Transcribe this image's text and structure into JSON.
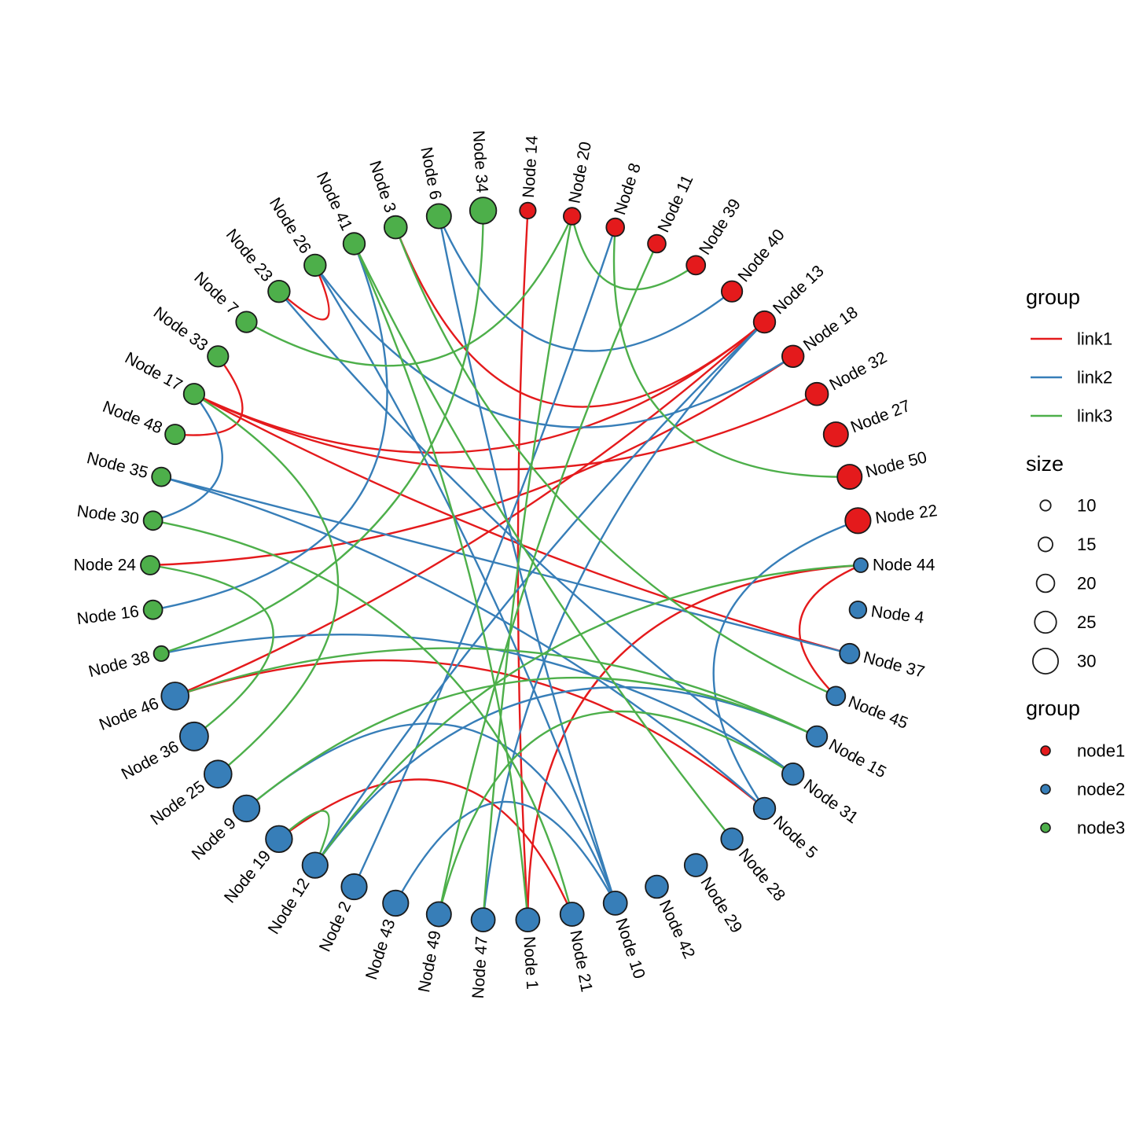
{
  "colors": {
    "link1": "#E41A1C",
    "link2": "#377EB8",
    "link3": "#4DAF4A",
    "node1": "#E41A1C",
    "node2": "#377EB8",
    "node3": "#4DAF4A"
  },
  "nodes": [
    {
      "label": "Node 44",
      "group": "node2",
      "size": 10
    },
    {
      "label": "Node 4",
      "group": "node2",
      "size": 13
    },
    {
      "label": "Node 37",
      "group": "node2",
      "size": 16
    },
    {
      "label": "Node 45",
      "group": "node2",
      "size": 15
    },
    {
      "label": "Node 15",
      "group": "node2",
      "size": 17
    },
    {
      "label": "Node 31",
      "group": "node2",
      "size": 18
    },
    {
      "label": "Node 5",
      "group": "node2",
      "size": 18
    },
    {
      "label": "Node 28",
      "group": "node2",
      "size": 18
    },
    {
      "label": "Node 29",
      "group": "node2",
      "size": 19
    },
    {
      "label": "Node 42",
      "group": "node2",
      "size": 19
    },
    {
      "label": "Node 10",
      "group": "node2",
      "size": 20
    },
    {
      "label": "Node 21",
      "group": "node2",
      "size": 20
    },
    {
      "label": "Node 1",
      "group": "node2",
      "size": 20
    },
    {
      "label": "Node 47",
      "group": "node2",
      "size": 20
    },
    {
      "label": "Node 49",
      "group": "node2",
      "size": 21
    },
    {
      "label": "Node 43",
      "group": "node2",
      "size": 22
    },
    {
      "label": "Node 2",
      "group": "node2",
      "size": 22
    },
    {
      "label": "Node 12",
      "group": "node2",
      "size": 22
    },
    {
      "label": "Node 19",
      "group": "node2",
      "size": 23
    },
    {
      "label": "Node 9",
      "group": "node2",
      "size": 23
    },
    {
      "label": "Node 25",
      "group": "node2",
      "size": 24
    },
    {
      "label": "Node 36",
      "group": "node2",
      "size": 25
    },
    {
      "label": "Node 46",
      "group": "node2",
      "size": 24
    },
    {
      "label": "Node 38",
      "group": "node3",
      "size": 11
    },
    {
      "label": "Node 16",
      "group": "node3",
      "size": 15
    },
    {
      "label": "Node 24",
      "group": "node3",
      "size": 15
    },
    {
      "label": "Node 30",
      "group": "node3",
      "size": 15
    },
    {
      "label": "Node 35",
      "group": "node3",
      "size": 15
    },
    {
      "label": "Node 48",
      "group": "node3",
      "size": 16
    },
    {
      "label": "Node 17",
      "group": "node3",
      "size": 17
    },
    {
      "label": "Node 33",
      "group": "node3",
      "size": 17
    },
    {
      "label": "Node 7",
      "group": "node3",
      "size": 17
    },
    {
      "label": "Node 23",
      "group": "node3",
      "size": 18
    },
    {
      "label": "Node 26",
      "group": "node3",
      "size": 18
    },
    {
      "label": "Node 41",
      "group": "node3",
      "size": 18
    },
    {
      "label": "Node 3",
      "group": "node3",
      "size": 19
    },
    {
      "label": "Node 6",
      "group": "node3",
      "size": 21
    },
    {
      "label": "Node 34",
      "group": "node3",
      "size": 23
    },
    {
      "label": "Node 14",
      "group": "node1",
      "size": 12
    },
    {
      "label": "Node 20",
      "group": "node1",
      "size": 13
    },
    {
      "label": "Node 8",
      "group": "node1",
      "size": 14
    },
    {
      "label": "Node 11",
      "group": "node1",
      "size": 14
    },
    {
      "label": "Node 39",
      "group": "node1",
      "size": 15
    },
    {
      "label": "Node 40",
      "group": "node1",
      "size": 17
    },
    {
      "label": "Node 13",
      "group": "node1",
      "size": 18
    },
    {
      "label": "Node 18",
      "group": "node1",
      "size": 18
    },
    {
      "label": "Node 32",
      "group": "node1",
      "size": 19
    },
    {
      "label": "Node 27",
      "group": "node1",
      "size": 21
    },
    {
      "label": "Node 50",
      "group": "node1",
      "size": 21
    },
    {
      "label": "Node 22",
      "group": "node1",
      "size": 22
    }
  ],
  "edges": [
    {
      "from": "Node 14",
      "to": "Node 1",
      "group": "link1"
    },
    {
      "from": "Node 3",
      "to": "Node 13",
      "group": "link1"
    },
    {
      "from": "Node 17",
      "to": "Node 13",
      "group": "link1"
    },
    {
      "from": "Node 17",
      "to": "Node 32",
      "group": "link1"
    },
    {
      "from": "Node 17",
      "to": "Node 37",
      "group": "link1"
    },
    {
      "from": "Node 24",
      "to": "Node 18",
      "group": "link1"
    },
    {
      "from": "Node 46",
      "to": "Node 13",
      "group": "link1"
    },
    {
      "from": "Node 46",
      "to": "Node 5",
      "group": "link1"
    },
    {
      "from": "Node 19",
      "to": "Node 21",
      "group": "link1"
    },
    {
      "from": "Node 1",
      "to": "Node 44",
      "group": "link1"
    },
    {
      "from": "Node 44",
      "to": "Node 45",
      "group": "link1"
    },
    {
      "from": "Node 23",
      "to": "Node 26",
      "group": "link1"
    },
    {
      "from": "Node 33",
      "to": "Node 48",
      "group": "link1"
    },
    {
      "from": "Node 6",
      "to": "Node 40",
      "group": "link2"
    },
    {
      "from": "Node 6",
      "to": "Node 10",
      "group": "link2"
    },
    {
      "from": "Node 8",
      "to": "Node 2",
      "group": "link2"
    },
    {
      "from": "Node 26",
      "to": "Node 18",
      "group": "link2"
    },
    {
      "from": "Node 26",
      "to": "Node 10",
      "group": "link2"
    },
    {
      "from": "Node 23",
      "to": "Node 31",
      "group": "link2"
    },
    {
      "from": "Node 17",
      "to": "Node 30",
      "group": "link2"
    },
    {
      "from": "Node 35",
      "to": "Node 37",
      "group": "link2"
    },
    {
      "from": "Node 35",
      "to": "Node 5",
      "group": "link2"
    },
    {
      "from": "Node 16",
      "to": "Node 41",
      "group": "link2"
    },
    {
      "from": "Node 13",
      "to": "Node 12",
      "group": "link2"
    },
    {
      "from": "Node 13",
      "to": "Node 47",
      "group": "link2"
    },
    {
      "from": "Node 22",
      "to": "Node 5",
      "group": "link2"
    },
    {
      "from": "Node 38",
      "to": "Node 31",
      "group": "link2"
    },
    {
      "from": "Node 9",
      "to": "Node 10",
      "group": "link2"
    },
    {
      "from": "Node 43",
      "to": "Node 10",
      "group": "link2"
    },
    {
      "from": "Node 12",
      "to": "Node 15",
      "group": "link2"
    },
    {
      "from": "Node 20",
      "to": "Node 7",
      "group": "link3"
    },
    {
      "from": "Node 20",
      "to": "Node 39",
      "group": "link3"
    },
    {
      "from": "Node 20",
      "to": "Node 47",
      "group": "link3"
    },
    {
      "from": "Node 11",
      "to": "Node 49",
      "group": "link3"
    },
    {
      "from": "Node 8",
      "to": "Node 50",
      "group": "link3"
    },
    {
      "from": "Node 41",
      "to": "Node 28",
      "group": "link3"
    },
    {
      "from": "Node 41",
      "to": "Node 1",
      "group": "link3"
    },
    {
      "from": "Node 3",
      "to": "Node 45",
      "group": "link3"
    },
    {
      "from": "Node 34",
      "to": "Node 38",
      "group": "link3"
    },
    {
      "from": "Node 17",
      "to": "Node 25",
      "group": "link3"
    },
    {
      "from": "Node 30",
      "to": "Node 21",
      "group": "link3"
    },
    {
      "from": "Node 24",
      "to": "Node 36",
      "group": "link3"
    },
    {
      "from": "Node 46",
      "to": "Node 15",
      "group": "link3"
    },
    {
      "from": "Node 9",
      "to": "Node 15",
      "group": "link3"
    },
    {
      "from": "Node 19",
      "to": "Node 12",
      "group": "link3"
    },
    {
      "from": "Node 12",
      "to": "Node 44",
      "group": "link3"
    },
    {
      "from": "Node 49",
      "to": "Node 31",
      "group": "link3"
    }
  ],
  "legend": {
    "link_title": "group",
    "link_items": [
      {
        "label": "link1",
        "color": "#E41A1C"
      },
      {
        "label": "link2",
        "color": "#377EB8"
      },
      {
        "label": "link3",
        "color": "#4DAF4A"
      }
    ],
    "size_title": "size",
    "size_items": [
      {
        "label": "10",
        "value": 10
      },
      {
        "label": "15",
        "value": 15
      },
      {
        "label": "20",
        "value": 20
      },
      {
        "label": "25",
        "value": 25
      },
      {
        "label": "30",
        "value": 30
      }
    ],
    "node_title": "group",
    "node_items": [
      {
        "label": "node1",
        "color": "#E41A1C"
      },
      {
        "label": "node2",
        "color": "#377EB8"
      },
      {
        "label": "node3",
        "color": "#4DAF4A"
      }
    ]
  }
}
